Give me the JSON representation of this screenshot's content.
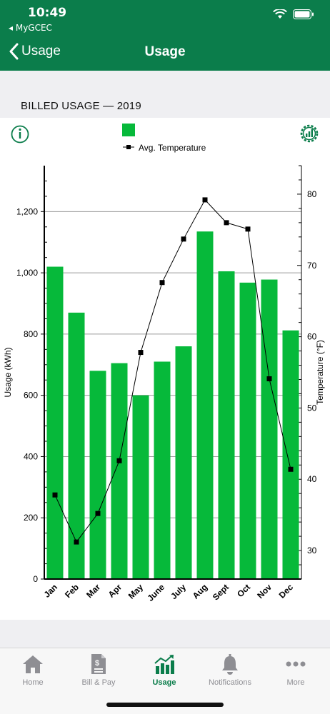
{
  "status": {
    "time": "10:49",
    "carrier": "◂ MyGCEC"
  },
  "nav": {
    "back_label": "Usage",
    "title": "Usage"
  },
  "section": {
    "title": "BILLED USAGE — 2019"
  },
  "icons": {
    "info": "info-icon",
    "settings": "chart-settings-icon"
  },
  "colors": {
    "header": "#0b7d4b",
    "bar": "#06b93a",
    "active_tab": "#0b7d4b"
  },
  "chart_data": {
    "type": "bar",
    "categories": [
      "Jan",
      "Feb",
      "Mar",
      "Apr",
      "May",
      "June",
      "July",
      "Aug",
      "Sept",
      "Oct",
      "Nov",
      "Dec"
    ],
    "series": [
      {
        "type": "bar",
        "axis": "left",
        "values": [
          1020,
          870,
          680,
          705,
          600,
          710,
          760,
          1135,
          1005,
          968,
          978,
          812
        ]
      },
      {
        "name": "Avg. Temperature",
        "type": "line",
        "axis": "right",
        "values": [
          37.8,
          31.2,
          35.2,
          42.6,
          57.8,
          67.6,
          73.7,
          79.2,
          76.0,
          75.1,
          54.1,
          41.4
        ]
      }
    ],
    "ylabel": "Usage (kWh)",
    "y2label": "Temperature (°F)",
    "ylim": [
      0,
      1350
    ],
    "y2lim": [
      26,
      84
    ],
    "yticks": [
      0,
      200,
      400,
      600,
      800,
      "1,000",
      "1,200"
    ],
    "y2ticks": [
      30,
      40,
      50,
      60,
      70,
      80
    ],
    "grid": true,
    "legend": "top"
  },
  "tabs": [
    {
      "label": "Home",
      "icon": "home-icon"
    },
    {
      "label": "Bill & Pay",
      "icon": "bill-icon"
    },
    {
      "label": "Usage",
      "icon": "usage-chart-icon"
    },
    {
      "label": "Notifications",
      "icon": "bell-icon"
    },
    {
      "label": "More",
      "icon": "more-icon"
    }
  ]
}
